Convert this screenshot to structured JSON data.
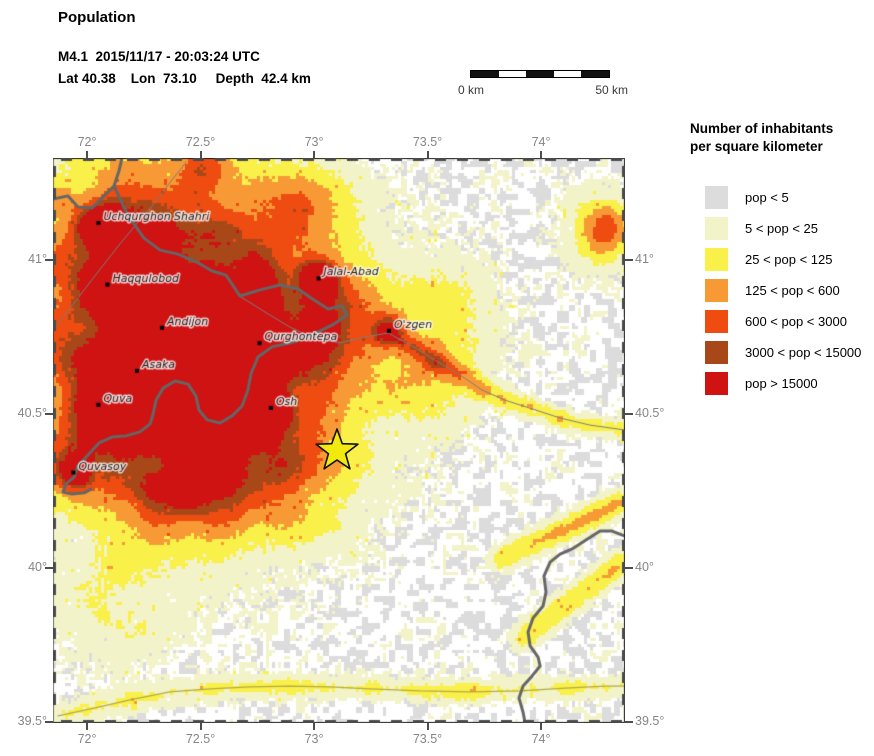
{
  "header": {
    "title": "Population",
    "event_line": "M4.1  2015/11/17 - 20:03:24 UTC",
    "location_line": "Lat 40.38    Lon  73.10     Depth  42.4 km"
  },
  "scale_bar": {
    "left_label": "0 km",
    "right_label": "50 km",
    "segments": 5
  },
  "map": {
    "extent": {
      "lon_min": 71.85,
      "lon_max": 74.37,
      "lat_min": 39.497,
      "lat_max": 41.331
    },
    "lon_ticks": [
      {
        "value": 72.0,
        "label": "72°"
      },
      {
        "value": 72.5,
        "label": "72.5°"
      },
      {
        "value": 73.0,
        "label": "73°"
      },
      {
        "value": 73.5,
        "label": "73.5°"
      },
      {
        "value": 74.0,
        "label": "74°"
      }
    ],
    "lat_ticks": [
      {
        "value": 41.0,
        "label": "41°"
      },
      {
        "value": 40.5,
        "label": "40.5°"
      },
      {
        "value": 40.0,
        "label": "40°"
      },
      {
        "value": 39.5,
        "label": "39.5°"
      }
    ],
    "epicenter": {
      "lat": 40.38,
      "lon": 73.1
    },
    "cities": [
      {
        "name": "Uchqurghon Shahri",
        "lon": 72.05,
        "lat": 41.12,
        "amp": 0.85,
        "r": 13
      },
      {
        "name": "Haqqulobod",
        "lon": 72.09,
        "lat": 40.92,
        "amp": 0.85,
        "r": 14
      },
      {
        "name": "Jalal-Abad",
        "lon": 73.02,
        "lat": 40.94,
        "amp": 0.9,
        "r": 13
      },
      {
        "name": "Andijon",
        "lon": 72.33,
        "lat": 40.78,
        "amp": 1.05,
        "r": 20
      },
      {
        "name": "O'zgen",
        "lon": 73.33,
        "lat": 40.77,
        "amp": 0.85,
        "r": 11
      },
      {
        "name": "Qurghontepa",
        "lon": 72.76,
        "lat": 40.73,
        "amp": 0.85,
        "r": 13
      },
      {
        "name": "Asaka",
        "lon": 72.22,
        "lat": 40.64,
        "amp": 0.85,
        "r": 12
      },
      {
        "name": "Quva",
        "lon": 72.05,
        "lat": 40.53,
        "amp": 0.8,
        "r": 11
      },
      {
        "name": "Osh",
        "lon": 72.81,
        "lat": 40.52,
        "amp": 0.95,
        "r": 15
      },
      {
        "name": "Quvasoy",
        "lon": 71.94,
        "lat": 40.31,
        "amp": 0.8,
        "r": 11
      }
    ],
    "borders": [
      [
        [
          71.85,
          41.198
        ],
        [
          71.916,
          41.208
        ],
        [
          71.96,
          41.172
        ],
        [
          72.022,
          41.169
        ],
        [
          72.075,
          41.208
        ],
        [
          72.119,
          41.24
        ],
        [
          72.181,
          41.143
        ],
        [
          72.251,
          41.071
        ],
        [
          72.322,
          41.032
        ],
        [
          72.401,
          41.019
        ],
        [
          72.48,
          40.994
        ],
        [
          72.551,
          40.964
        ],
        [
          72.612,
          40.951
        ],
        [
          72.674,
          40.883
        ],
        [
          72.762,
          40.903
        ],
        [
          72.85,
          40.919
        ],
        [
          72.93,
          40.906
        ],
        [
          73.0,
          40.87
        ],
        [
          73.062,
          40.841
        ],
        [
          73.123,
          40.851
        ],
        [
          73.145,
          40.821
        ],
        [
          73.088,
          40.792
        ],
        [
          73.0,
          40.76
        ],
        [
          72.912,
          40.734
        ],
        [
          72.815,
          40.718
        ],
        [
          72.753,
          40.685
        ],
        [
          72.722,
          40.63
        ],
        [
          72.709,
          40.578
        ],
        [
          72.683,
          40.526
        ],
        [
          72.639,
          40.494
        ],
        [
          72.586,
          40.471
        ],
        [
          72.529,
          40.481
        ],
        [
          72.493,
          40.513
        ],
        [
          72.48,
          40.558
        ],
        [
          72.445,
          40.597
        ],
        [
          72.388,
          40.607
        ],
        [
          72.335,
          40.584
        ],
        [
          72.304,
          40.545
        ],
        [
          72.291,
          40.5
        ],
        [
          72.278,
          40.468
        ],
        [
          72.233,
          40.442
        ],
        [
          72.172,
          40.429
        ],
        [
          72.11,
          40.425
        ],
        [
          72.053,
          40.406
        ],
        [
          72.004,
          40.367
        ],
        [
          71.96,
          40.331
        ],
        [
          71.943,
          40.295
        ],
        [
          71.907,
          40.273
        ],
        [
          71.894,
          40.247
        ],
        [
          71.934,
          40.24
        ],
        [
          71.987,
          40.244
        ],
        [
          72.018,
          40.256
        ]
      ],
      [
        [
          72.119,
          41.24
        ],
        [
          72.141,
          41.29
        ],
        [
          72.154,
          41.331
        ]
      ],
      [
        [
          74.37,
          40.104
        ],
        [
          74.313,
          40.12
        ],
        [
          74.26,
          40.12
        ],
        [
          74.198,
          40.091
        ],
        [
          74.137,
          40.062
        ],
        [
          74.084,
          40.045
        ],
        [
          74.04,
          40.019
        ],
        [
          74.013,
          39.974
        ],
        [
          74.022,
          39.922
        ],
        [
          74.009,
          39.877
        ],
        [
          73.965,
          39.838
        ],
        [
          73.943,
          39.792
        ],
        [
          73.952,
          39.747
        ],
        [
          73.987,
          39.711
        ],
        [
          73.996,
          39.682
        ],
        [
          73.96,
          39.649
        ],
        [
          73.921,
          39.617
        ],
        [
          73.903,
          39.578
        ],
        [
          73.921,
          39.532
        ],
        [
          73.93,
          39.497
        ]
      ]
    ],
    "rivers": [
      [
        [
          71.85,
          40.773
        ],
        [
          71.947,
          40.864
        ],
        [
          72.048,
          40.961
        ],
        [
          72.145,
          41.052
        ],
        [
          72.225,
          41.123
        ],
        [
          72.286,
          41.175
        ],
        [
          72.335,
          41.221
        ],
        [
          72.374,
          41.26
        ],
        [
          72.41,
          41.292
        ],
        [
          72.436,
          41.318
        ]
      ],
      [
        [
          72.665,
          40.886
        ],
        [
          72.784,
          40.831
        ],
        [
          72.894,
          40.782
        ],
        [
          73.004,
          40.744
        ],
        [
          73.115,
          40.731
        ],
        [
          73.225,
          40.75
        ],
        [
          73.326,
          40.763
        ],
        [
          73.432,
          40.721
        ],
        [
          73.546,
          40.669
        ],
        [
          73.643,
          40.627
        ],
        [
          73.74,
          40.578
        ],
        [
          73.841,
          40.545
        ],
        [
          73.951,
          40.519
        ],
        [
          74.084,
          40.487
        ],
        [
          74.216,
          40.464
        ],
        [
          74.37,
          40.448
        ]
      ]
    ],
    "roads": [
      [
        [
          71.872,
          39.52
        ],
        [
          72.035,
          39.546
        ],
        [
          72.189,
          39.572
        ],
        [
          72.365,
          39.598
        ],
        [
          72.542,
          39.608
        ],
        [
          72.718,
          39.614
        ],
        [
          72.894,
          39.617
        ],
        [
          73.07,
          39.614
        ],
        [
          73.246,
          39.608
        ],
        [
          73.467,
          39.601
        ],
        [
          73.687,
          39.598
        ],
        [
          73.907,
          39.601
        ],
        [
          74.128,
          39.611
        ],
        [
          74.282,
          39.617
        ],
        [
          74.37,
          39.617
        ]
      ]
    ],
    "density_regions": [
      [
        72.145,
        41.0,
        0.5,
        55
      ],
      [
        72.365,
        40.805,
        0.55,
        60
      ],
      [
        72.145,
        40.545,
        0.45,
        50
      ],
      [
        72.63,
        40.87,
        0.45,
        45
      ],
      [
        72.894,
        40.805,
        0.4,
        40
      ],
      [
        73.158,
        40.773,
        0.35,
        35
      ],
      [
        72.674,
        40.448,
        0.4,
        45
      ],
      [
        72.277,
        40.318,
        0.4,
        40
      ],
      [
        72.938,
        40.318,
        0.3,
        40
      ],
      [
        73.511,
        40.61,
        0.25,
        30
      ],
      [
        74.26,
        41.097,
        0.3,
        28
      ],
      [
        74.304,
        41.104,
        0.4,
        16
      ],
      [
        72.497,
        40.253,
        0.35,
        35
      ],
      [
        72.409,
        40.773,
        0.28,
        130
      ],
      [
        72.233,
        40.935,
        0.18,
        100
      ],
      [
        72.762,
        40.578,
        0.18,
        90
      ],
      [
        72.533,
        41.305,
        0.35,
        18
      ],
      [
        72.951,
        41.169,
        0.3,
        30
      ],
      [
        73.59,
        40.812,
        0.22,
        35
      ],
      [
        72.731,
        40.26,
        0.3,
        35
      ],
      [
        72.114,
        39.903,
        0.18,
        45
      ],
      [
        71.894,
        40.357,
        0.45,
        30
      ]
    ],
    "density_ridges": [
      {
        "amp": 0.16,
        "r": 9,
        "points": [
          [
            73.819,
            40.026
          ],
          [
            74.37,
            40.221
          ]
        ]
      },
      {
        "amp": 0.15,
        "r": 9,
        "points": [
          [
            73.907,
            39.766
          ],
          [
            74.37,
            40.026
          ]
        ]
      },
      {
        "amp": 0.13,
        "r": 7,
        "points": [
          [
            73.326,
            40.763
          ],
          [
            73.432,
            40.721
          ],
          [
            73.546,
            40.669
          ],
          [
            73.643,
            40.627
          ],
          [
            73.74,
            40.578
          ],
          [
            73.841,
            40.545
          ],
          [
            73.951,
            40.519
          ],
          [
            74.084,
            40.487
          ],
          [
            74.216,
            40.464
          ],
          [
            74.37,
            40.448
          ]
        ]
      },
      {
        "amp": 0.1,
        "r": 8,
        "points": [
          [
            71.872,
            39.52
          ],
          [
            72.189,
            39.572
          ],
          [
            72.542,
            39.608
          ],
          [
            72.894,
            39.617
          ],
          [
            73.246,
            39.608
          ],
          [
            73.687,
            39.598
          ],
          [
            74.128,
            39.611
          ],
          [
            74.37,
            39.617
          ]
        ]
      }
    ]
  },
  "legend": {
    "title_line1": "Number of inhabitants",
    "title_line2": "per square kilometer",
    "entries": [
      {
        "label": "pop < 5",
        "color": "#dcdcdc"
      },
      {
        "label": "5 < pop < 25",
        "color": "#f3f3c9"
      },
      {
        "label": "25 < pop < 125",
        "color": "#f9f04a"
      },
      {
        "label": "125 < pop < 600",
        "color": "#f79a35"
      },
      {
        "label": "600 < pop < 3000",
        "color": "#ee4c10"
      },
      {
        "label": "3000 < pop < 15000",
        "color": "#a84818"
      },
      {
        "label": "pop > 15000",
        "color": "#cf1212"
      }
    ]
  },
  "palette": {
    "white": "#ffffff",
    "border": "#666666",
    "river": "#7d7d7d",
    "road": "#b3aa45",
    "frame_dash": "#4a4a4a",
    "frame_line": "#222222",
    "axis_label": "#858585",
    "city_label": "#1c1c1c",
    "star_fill": "#f2e90e",
    "star_stroke": "#111111",
    "scale_dark": "#111111",
    "scale_light": "#ffffff"
  }
}
